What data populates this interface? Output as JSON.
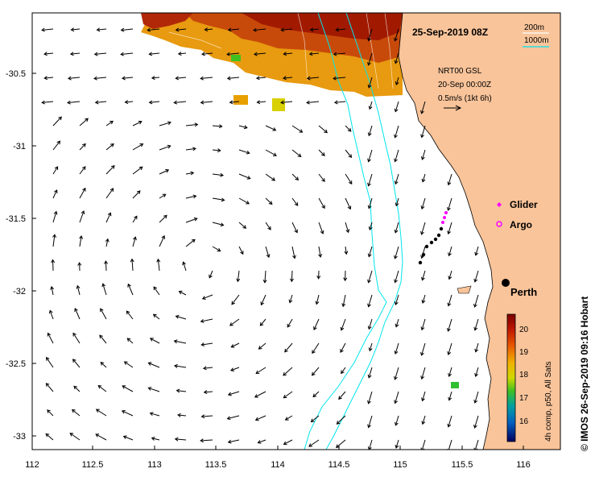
{
  "map": {
    "date_title": "25-Sep-2019 08Z",
    "depth_legend": [
      "200m",
      "1000m"
    ],
    "vector_legend": [
      "NRT00 GSL",
      "20-Sep 00:00Z",
      "0.5m/s (1kt 6h)"
    ],
    "markers": {
      "glider": "Glider",
      "argo": "Argo"
    },
    "city": "Perth",
    "colorbar": {
      "ticks": [
        "20",
        "19",
        "18",
        "17",
        "16"
      ],
      "caption": "4h comp, p50, All Sats"
    },
    "credit": "© IMOS 26-Sep-2019 09:16 Hobart",
    "axes": {
      "y_ticks": [
        "-30.5",
        "-31",
        "-31.5",
        "-32",
        "-32.5",
        "-33"
      ],
      "x_ticks": [
        "112",
        "112.5",
        "113",
        "113.5",
        "114",
        "114.5",
        "115",
        "115.5",
        "116"
      ]
    },
    "colors": {
      "land": "#f9c49a",
      "isobath": "#00e5ee",
      "glider": "#ff00ff",
      "sst_warm": "#a11a00",
      "sst_mid": "#e8a000"
    }
  }
}
